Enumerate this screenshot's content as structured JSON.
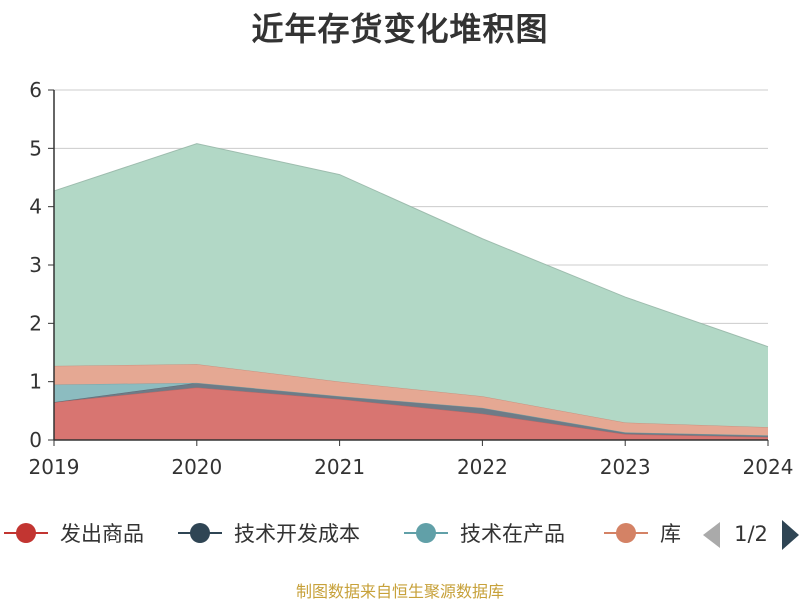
{
  "chart_data": {
    "type": "area",
    "stacked": true,
    "title": "近年存货变化堆积图",
    "xlabel": "",
    "ylabel": "",
    "x": [
      "2019",
      "2020",
      "2021",
      "2022",
      "2023",
      "2024"
    ],
    "ylim": [
      0,
      6
    ],
    "yticks": [
      "0",
      "1",
      "2",
      "3",
      "4",
      "5",
      "6"
    ],
    "grid": true,
    "series": [
      {
        "name": "发出商品",
        "color": "#d87571",
        "values": [
          0.65,
          0.9,
          0.7,
          0.45,
          0.1,
          0.05
        ]
      },
      {
        "name": "技术开发成本",
        "color": "#6e7b87",
        "values": [
          0.0,
          0.08,
          0.05,
          0.1,
          0.03,
          0.03
        ]
      },
      {
        "name": "技术在产品",
        "color": "#8cbcc0",
        "values": [
          0.3,
          0.0,
          0.0,
          0.0,
          0.0,
          0.0
        ]
      },
      {
        "name": "库存商品",
        "color": "#e5a893",
        "values": [
          0.32,
          0.32,
          0.25,
          0.2,
          0.17,
          0.14
        ]
      },
      {
        "name": "",
        "color": "#b2d8c6",
        "values": [
          3.0,
          3.78,
          3.55,
          2.7,
          2.15,
          1.38
        ]
      }
    ]
  },
  "legend": {
    "items": [
      {
        "label": "发出商品",
        "color": "#c23531"
      },
      {
        "label": "技术开发成本",
        "color": "#2f4554"
      },
      {
        "label": "技术在产品",
        "color": "#61a0a8"
      },
      {
        "label": "库",
        "color": "#d48265"
      }
    ],
    "page": "1/2",
    "arrow_color_prev": "#aaaaaa",
    "arrow_color_next": "#2f4554"
  },
  "source_note": "制图数据来自恒生聚源数据库"
}
